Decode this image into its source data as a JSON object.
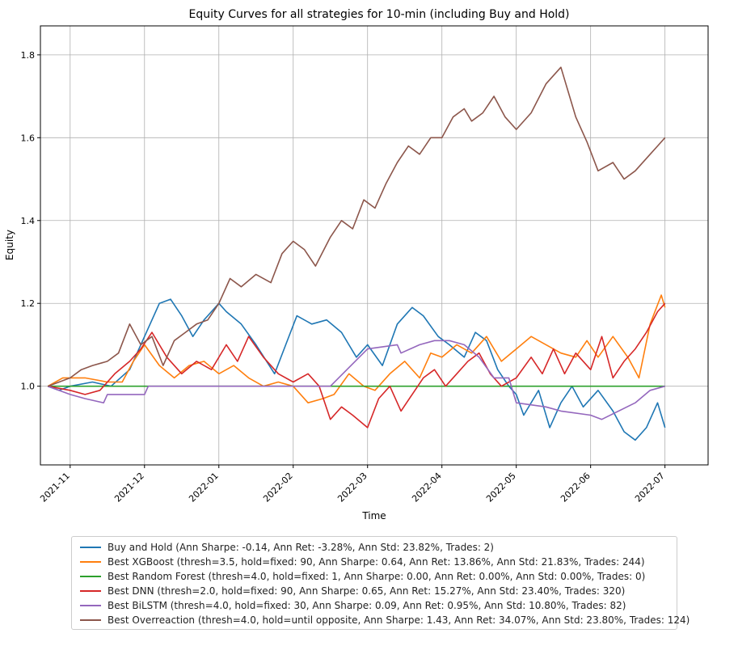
{
  "chart_data": {
    "type": "line",
    "title": "Equity Curves for all strategies for 10-min (including Buy and Hold)",
    "xlabel": "Time",
    "ylabel": "Equity",
    "ylim": [
      0.81,
      1.87
    ],
    "yticks": [
      1.0,
      1.2,
      1.4,
      1.6,
      1.8
    ],
    "ytick_labels": [
      "1.0",
      "1.2",
      "1.4",
      "1.6",
      "1.8"
    ],
    "xlim": [
      -0.4,
      8.58
    ],
    "xticks": [
      0,
      1,
      2,
      3,
      4,
      5,
      6,
      7,
      8
    ],
    "xtick_labels": [
      "2021-11",
      "2021-12",
      "2022-01",
      "2022-02",
      "2022-03",
      "2022-04",
      "2022-05",
      "2022-06",
      "2022-07"
    ],
    "grid": true,
    "legend_position": "bottom",
    "series": [
      {
        "name": "Buy and Hold (Ann Sharpe: -0.14, Ann Ret: -3.28%, Ann Std: 23.82%, Trades: 2)",
        "color": "#1f77b4",
        "x": [
          -0.3,
          -0.15,
          0.0,
          0.3,
          0.55,
          0.8,
          1.0,
          1.2,
          1.35,
          1.5,
          1.65,
          1.8,
          2.0,
          2.1,
          2.3,
          2.5,
          2.75,
          2.9,
          3.05,
          3.25,
          3.45,
          3.65,
          3.85,
          4.0,
          4.2,
          4.4,
          4.6,
          4.75,
          4.95,
          5.1,
          5.3,
          5.45,
          5.6,
          5.75,
          5.9,
          6.0,
          6.1,
          6.3,
          6.45,
          6.6,
          6.75,
          6.9,
          7.1,
          7.3,
          7.45,
          7.6,
          7.75,
          7.9,
          8.0
        ],
        "y": [
          1.0,
          0.99,
          1.0,
          1.01,
          1.0,
          1.04,
          1.12,
          1.2,
          1.21,
          1.17,
          1.12,
          1.16,
          1.2,
          1.18,
          1.15,
          1.1,
          1.03,
          1.1,
          1.17,
          1.15,
          1.16,
          1.13,
          1.07,
          1.1,
          1.05,
          1.15,
          1.19,
          1.17,
          1.12,
          1.1,
          1.07,
          1.13,
          1.11,
          1.04,
          1.0,
          0.98,
          0.93,
          0.99,
          0.9,
          0.96,
          1.0,
          0.95,
          0.99,
          0.94,
          0.89,
          0.87,
          0.9,
          0.96,
          0.9
        ]
      },
      {
        "name": "Best XGBoost (thresh=3.5, hold=fixed: 90, Ann Sharpe: 0.64, Ann Ret: 13.86%, Ann Std: 21.83%, Trades: 244)",
        "color": "#ff7f0e",
        "x": [
          -0.3,
          -0.1,
          0.2,
          0.5,
          0.7,
          0.85,
          1.0,
          1.2,
          1.4,
          1.6,
          1.8,
          2.0,
          2.2,
          2.4,
          2.6,
          2.8,
          3.0,
          3.2,
          3.4,
          3.55,
          3.75,
          3.95,
          4.1,
          4.3,
          4.5,
          4.7,
          4.85,
          5.0,
          5.2,
          5.4,
          5.6,
          5.8,
          6.0,
          6.2,
          6.4,
          6.6,
          6.8,
          6.95,
          7.1,
          7.3,
          7.5,
          7.65,
          7.8,
          7.95,
          8.0
        ],
        "y": [
          1.0,
          1.02,
          1.02,
          1.01,
          1.01,
          1.06,
          1.1,
          1.05,
          1.02,
          1.05,
          1.06,
          1.03,
          1.05,
          1.02,
          1.0,
          1.01,
          1.0,
          0.96,
          0.97,
          0.98,
          1.03,
          1.0,
          0.99,
          1.03,
          1.06,
          1.02,
          1.08,
          1.07,
          1.1,
          1.08,
          1.12,
          1.06,
          1.09,
          1.12,
          1.1,
          1.08,
          1.07,
          1.11,
          1.07,
          1.12,
          1.07,
          1.02,
          1.15,
          1.22,
          1.19
        ]
      },
      {
        "name": "Best Random Forest (thresh=4.0, hold=fixed: 1, Ann Sharpe: 0.00, Ann Ret: 0.00%, Ann Std: 0.00%, Trades: 0)",
        "color": "#2ca02c",
        "x": [
          -0.3,
          8.0
        ],
        "y": [
          1.0,
          1.0
        ]
      },
      {
        "name": "Best DNN (thresh=2.0, hold=fixed: 90, Ann Sharpe: 0.65, Ann Ret: 15.27%, Ann Std: 23.40%, Trades: 320)",
        "color": "#d62728",
        "x": [
          -0.3,
          0.0,
          0.2,
          0.4,
          0.6,
          0.8,
          0.95,
          1.1,
          1.3,
          1.5,
          1.7,
          1.9,
          2.1,
          2.25,
          2.4,
          2.6,
          2.8,
          3.0,
          3.2,
          3.35,
          3.5,
          3.65,
          3.8,
          4.0,
          4.15,
          4.3,
          4.45,
          4.6,
          4.75,
          4.9,
          5.05,
          5.2,
          5.35,
          5.5,
          5.65,
          5.8,
          6.0,
          6.2,
          6.35,
          6.5,
          6.65,
          6.8,
          7.0,
          7.15,
          7.3,
          7.45,
          7.6,
          7.75,
          7.9,
          8.0
        ],
        "y": [
          1.0,
          0.99,
          0.98,
          0.99,
          1.03,
          1.06,
          1.09,
          1.13,
          1.07,
          1.03,
          1.06,
          1.04,
          1.1,
          1.06,
          1.12,
          1.07,
          1.03,
          1.01,
          1.03,
          1.0,
          0.92,
          0.95,
          0.93,
          0.9,
          0.97,
          1.0,
          0.94,
          0.98,
          1.02,
          1.04,
          1.0,
          1.03,
          1.06,
          1.08,
          1.03,
          1.0,
          1.02,
          1.07,
          1.03,
          1.09,
          1.03,
          1.08,
          1.04,
          1.12,
          1.02,
          1.06,
          1.09,
          1.13,
          1.18,
          1.2
        ]
      },
      {
        "name": "Best BiLSTM (thresh=4.0, hold=fixed: 30, Ann Sharpe: 0.09, Ann Ret: 0.95%, Ann Std: 10.80%, Trades: 82)",
        "color": "#9467bd",
        "x": [
          -0.3,
          0.0,
          0.2,
          0.45,
          0.5,
          1.0,
          1.05,
          2.0,
          2.5,
          3.0,
          3.5,
          4.0,
          4.4,
          4.45,
          4.7,
          4.9,
          5.1,
          5.3,
          5.5,
          5.7,
          5.9,
          6.0,
          6.4,
          6.6,
          7.0,
          7.15,
          7.6,
          7.8,
          8.0
        ],
        "y": [
          1.0,
          0.98,
          0.97,
          0.96,
          0.98,
          0.98,
          1.0,
          1.0,
          1.0,
          1.0,
          1.0,
          1.09,
          1.1,
          1.08,
          1.1,
          1.11,
          1.11,
          1.1,
          1.07,
          1.02,
          1.02,
          0.96,
          0.95,
          0.94,
          0.93,
          0.92,
          0.96,
          0.99,
          1.0
        ]
      },
      {
        "name": "Best Overreaction (thresh=4.0, hold=until opposite, Ann Sharpe: 1.43, Ann Ret: 34.07%, Ann Std: 23.80%, Trades: 124)",
        "color": "#8c564b",
        "x": [
          -0.3,
          0.0,
          0.15,
          0.3,
          0.5,
          0.65,
          0.8,
          0.95,
          1.1,
          1.25,
          1.4,
          1.55,
          1.7,
          1.85,
          2.0,
          2.15,
          2.3,
          2.5,
          2.7,
          2.85,
          3.0,
          3.15,
          3.3,
          3.5,
          3.65,
          3.8,
          3.95,
          4.1,
          4.25,
          4.4,
          4.55,
          4.7,
          4.85,
          5.0,
          5.15,
          5.3,
          5.4,
          5.55,
          5.7,
          5.85,
          6.0,
          6.2,
          6.4,
          6.6,
          6.8,
          6.95,
          7.1,
          7.3,
          7.45,
          7.6,
          7.8,
          7.9,
          8.0
        ],
        "y": [
          1.0,
          1.02,
          1.04,
          1.05,
          1.06,
          1.08,
          1.15,
          1.1,
          1.12,
          1.05,
          1.11,
          1.13,
          1.15,
          1.16,
          1.2,
          1.26,
          1.24,
          1.27,
          1.25,
          1.32,
          1.35,
          1.33,
          1.29,
          1.36,
          1.4,
          1.38,
          1.45,
          1.43,
          1.49,
          1.54,
          1.58,
          1.56,
          1.6,
          1.6,
          1.65,
          1.67,
          1.64,
          1.66,
          1.7,
          1.65,
          1.62,
          1.66,
          1.73,
          1.77,
          1.65,
          1.59,
          1.52,
          1.54,
          1.5,
          1.52,
          1.56,
          1.58,
          1.6
        ]
      }
    ]
  }
}
